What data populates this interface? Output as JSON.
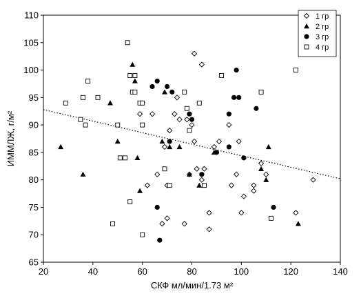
{
  "chart_data": {
    "type": "scatter",
    "title": "",
    "xlabel": "СКФ мл/мин/1.73 м²",
    "ylabel": "ИММЛЖ, г/м²",
    "xlim": [
      20,
      140
    ],
    "ylim": [
      65,
      110
    ],
    "x_ticks": [
      20,
      40,
      60,
      80,
      100,
      120,
      140
    ],
    "y_ticks": [
      65,
      70,
      75,
      80,
      85,
      90,
      95,
      100,
      105,
      110
    ],
    "x_tick_labels": [
      "20",
      "40",
      "60",
      "80",
      "100",
      "120",
      "140"
    ],
    "y_tick_labels": [
      "65",
      "70",
      "75",
      "80",
      "85",
      "90",
      "95",
      "100",
      "105",
      "110"
    ],
    "grid": false,
    "legend_position": "top-right",
    "trend_line": {
      "style": "dotted",
      "x": [
        20,
        140
      ],
      "y": [
        92.8,
        80.2
      ]
    },
    "series": [
      {
        "name": "1 гр",
        "marker": "diamond-open",
        "points": [
          [
            59,
            92
          ],
          [
            64,
            92
          ],
          [
            62,
            79
          ],
          [
            66,
            81
          ],
          [
            68,
            72
          ],
          [
            69,
            86
          ],
          [
            70,
            73
          ],
          [
            70,
            79
          ],
          [
            71,
            89
          ],
          [
            73,
            92
          ],
          [
            74,
            95
          ],
          [
            75,
            91
          ],
          [
            77,
            72
          ],
          [
            78,
            91
          ],
          [
            79,
            81
          ],
          [
            80,
            90
          ],
          [
            81,
            103
          ],
          [
            81,
            87
          ],
          [
            82,
            82
          ],
          [
            84,
            101
          ],
          [
            84,
            80
          ],
          [
            85,
            82
          ],
          [
            87,
            74
          ],
          [
            87,
            71
          ],
          [
            89,
            86
          ],
          [
            91,
            87
          ],
          [
            95,
            90
          ],
          [
            96,
            79
          ],
          [
            98,
            81
          ],
          [
            99,
            87
          ],
          [
            100,
            74
          ],
          [
            101,
            77
          ],
          [
            105,
            79
          ],
          [
            105,
            78
          ],
          [
            108,
            83
          ],
          [
            110,
            81
          ],
          [
            122,
            74
          ],
          [
            129,
            80
          ]
        ]
      },
      {
        "name": "2 гр",
        "marker": "triangle-filled",
        "points": [
          [
            27,
            86
          ],
          [
            36,
            81
          ],
          [
            47,
            94
          ],
          [
            50,
            87
          ],
          [
            56,
            101
          ],
          [
            57,
            98
          ],
          [
            58,
            84
          ],
          [
            59,
            78
          ],
          [
            68,
            87
          ],
          [
            69,
            96
          ],
          [
            71,
            86
          ],
          [
            75,
            86
          ],
          [
            79,
            81
          ],
          [
            83,
            79
          ],
          [
            89,
            85
          ],
          [
            108,
            82
          ],
          [
            110,
            80
          ],
          [
            111,
            86
          ],
          [
            123,
            72
          ]
        ]
      },
      {
        "name": "3 гр",
        "marker": "circle-filled",
        "points": [
          [
            64,
            97
          ],
          [
            66,
            98
          ],
          [
            66,
            75
          ],
          [
            70,
            97
          ],
          [
            71,
            87
          ],
          [
            72,
            96
          ],
          [
            79,
            92
          ],
          [
            80,
            91
          ],
          [
            84,
            81
          ],
          [
            90,
            85
          ],
          [
            95,
            92
          ],
          [
            95,
            86
          ],
          [
            97,
            95
          ],
          [
            98,
            100
          ],
          [
            99,
            95
          ],
          [
            101,
            84
          ],
          [
            106,
            93
          ],
          [
            113,
            75
          ],
          [
            67,
            69
          ]
        ]
      },
      {
        "name": "4 гр",
        "marker": "square-open",
        "points": [
          [
            29,
            94
          ],
          [
            35,
            91
          ],
          [
            36,
            95
          ],
          [
            37,
            90
          ],
          [
            38,
            98
          ],
          [
            42,
            95
          ],
          [
            48,
            72
          ],
          [
            50,
            90
          ],
          [
            51,
            84
          ],
          [
            53,
            84
          ],
          [
            54,
            105
          ],
          [
            55,
            76
          ],
          [
            55,
            99
          ],
          [
            56,
            96
          ],
          [
            57,
            96
          ],
          [
            57,
            99
          ],
          [
            59,
            94
          ],
          [
            60,
            70
          ],
          [
            60,
            90
          ],
          [
            60,
            94
          ],
          [
            69,
            82
          ],
          [
            71,
            79
          ],
          [
            77,
            96
          ],
          [
            78,
            93
          ],
          [
            79,
            89
          ],
          [
            83,
            94
          ],
          [
            85,
            79
          ],
          [
            92,
            99
          ],
          [
            108,
            96
          ],
          [
            112,
            73
          ],
          [
            122,
            100
          ]
        ]
      }
    ]
  }
}
